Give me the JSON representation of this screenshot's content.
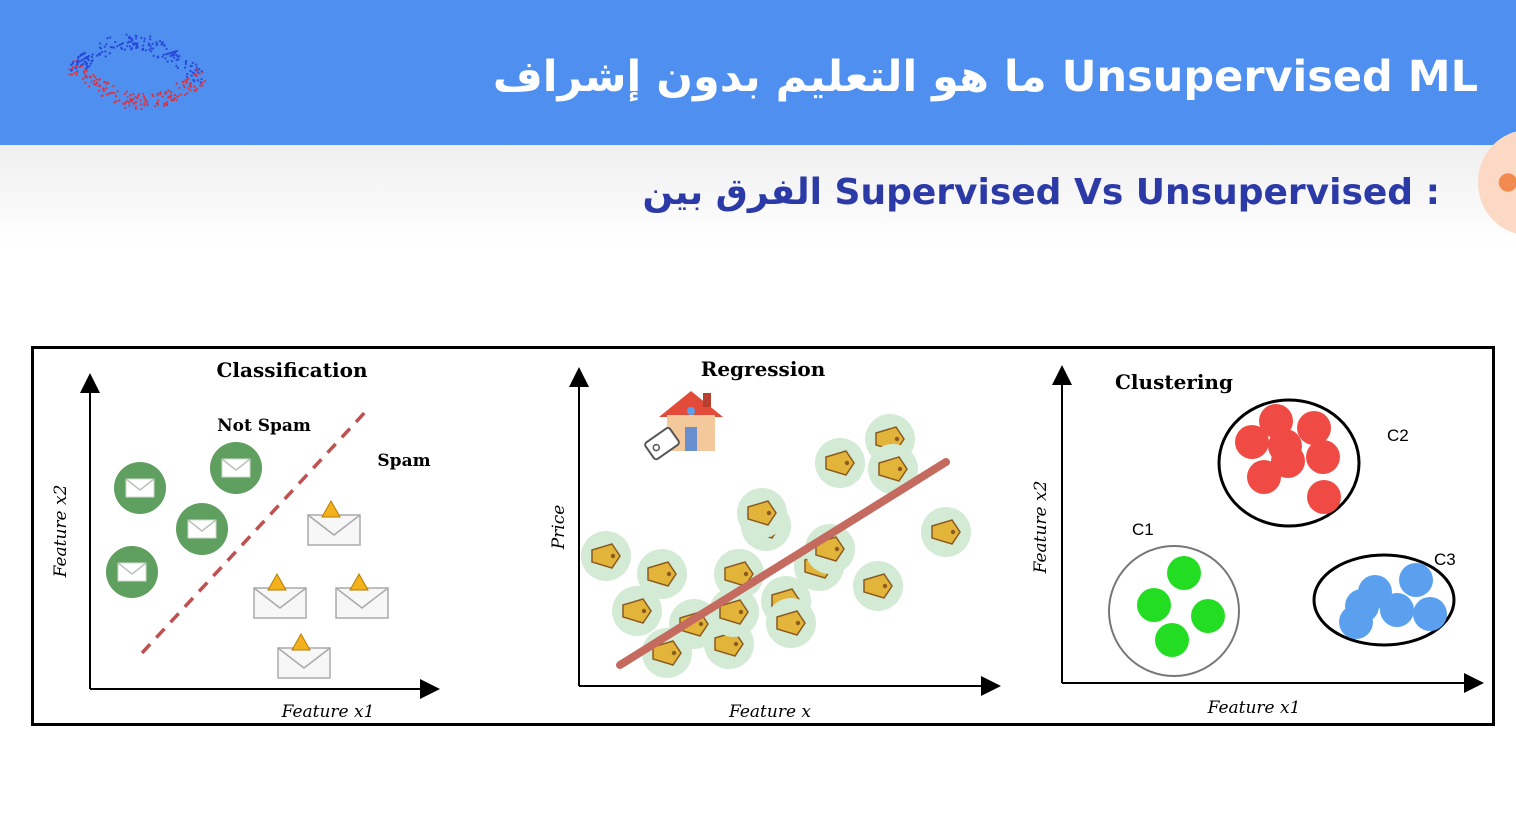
{
  "header": {
    "title": "ما هو التعليم بدون إشراف Unsupervised ML",
    "logo_icon": "dotted-wave-logo-icon",
    "background": "#4f8ff0"
  },
  "subtitle": "الفرق بين Supervised Vs Unsupervised :",
  "panels": {
    "classification": {
      "title": "Classification",
      "label_not_spam": "Not Spam",
      "label_spam": "Spam",
      "xlabel": "Feature x1",
      "ylabel": "Feature x2",
      "icons": [
        "envelope-icon",
        "warning-envelope-icon"
      ]
    },
    "regression": {
      "title": "Regression",
      "xlabel": "Feature x",
      "ylabel": "Price",
      "icons": [
        "house-icon",
        "price-tag-icon"
      ]
    },
    "clustering": {
      "title": "Clustering",
      "xlabel": "Feature x1",
      "ylabel": "Feature x2",
      "clusters": [
        {
          "label": "C1",
          "color": "#22dd22"
        },
        {
          "label": "C2",
          "color": "#f04a44"
        },
        {
          "label": "C3",
          "color": "#5aa0ee"
        }
      ]
    }
  },
  "colors": {
    "not_spam_green": "#5f9f5f",
    "regression_line": "#c46a5e",
    "subtitle_blue": "#2b3aa6"
  }
}
